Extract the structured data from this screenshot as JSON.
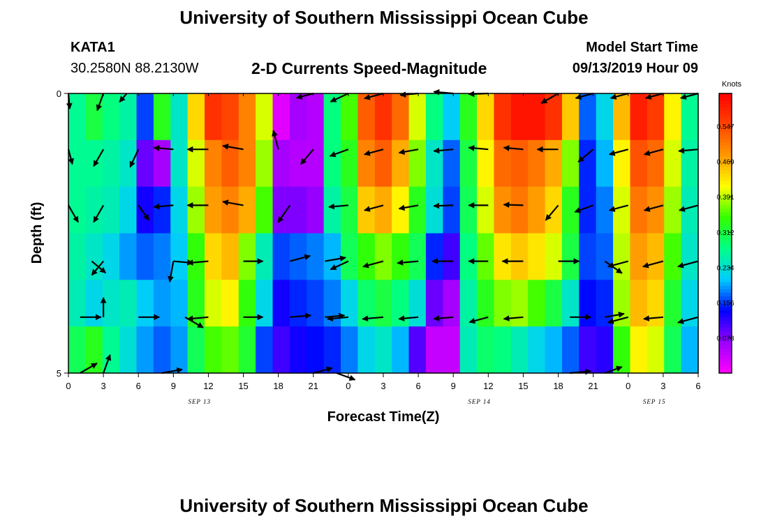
{
  "header": {
    "title": "University of Southern Mississippi Ocean Cube",
    "station": "KATA1",
    "coords": "30.2580N 88.2130W",
    "plot_title": "2-D Currents Speed-Magnitude",
    "model_label": "Model Start Time",
    "model_time": "09/13/2019 Hour 09"
  },
  "footer": {
    "title": "University of Southern Mississippi Ocean Cube"
  },
  "chart_data": {
    "type": "heatmap",
    "xlabel": "Forecast Time(Z)",
    "ylabel": "Depth (ft)",
    "xlim": [
      0,
      54
    ],
    "ylim": [
      0,
      5
    ],
    "x_ticks": [
      "0",
      "3",
      "6",
      "9",
      "12",
      "15",
      "18",
      "21",
      "0",
      "3",
      "6",
      "9",
      "12",
      "15",
      "18",
      "21",
      "0",
      "3",
      "6"
    ],
    "y_ticks": [
      "0",
      "5"
    ],
    "date_labels": [
      {
        "label": "SEP 13",
        "hour": 11
      },
      {
        "label": "SEP 14",
        "hour": 35
      },
      {
        "label": "SEP 15",
        "hour": 50
      }
    ],
    "colorbar": {
      "unit": "Knots",
      "range": [
        0,
        0.62
      ],
      "ticks": [
        "0.078",
        "0.156",
        "0.234",
        "0.312",
        "0.391",
        "0.469",
        "0.547"
      ],
      "colors": [
        "#ff00ff",
        "#9900ff",
        "#0000ff",
        "#00ccff",
        "#00ff88",
        "#33ff00",
        "#ffff00",
        "#ff9900",
        "#ff4400",
        "#ff0000"
      ]
    },
    "depth_layers": [
      0,
      1,
      2,
      3,
      4,
      5
    ],
    "speed": [
      [
        0.27,
        0.31,
        0.28,
        0.26,
        0.16,
        0.33,
        0.24,
        0.44,
        0.57,
        0.55,
        0.5,
        0.4,
        0.02,
        0.06,
        0.05,
        0.28,
        0.35,
        0.53,
        0.57,
        0.52,
        0.4,
        0.28,
        0.21,
        0.33,
        0.44,
        0.57,
        0.6,
        0.6,
        0.57,
        0.45,
        0.17,
        0.22,
        0.46,
        0.59,
        0.56,
        0.42,
        0.27
      ],
      [
        0.27,
        0.27,
        0.26,
        0.24,
        0.09,
        0.06,
        0.24,
        0.4,
        0.5,
        0.53,
        0.5,
        0.38,
        0.06,
        0.05,
        0.05,
        0.28,
        0.33,
        0.5,
        0.53,
        0.47,
        0.37,
        0.24,
        0.17,
        0.31,
        0.42,
        0.52,
        0.53,
        0.51,
        0.47,
        0.37,
        0.15,
        0.2,
        0.42,
        0.54,
        0.52,
        0.4,
        0.26
      ],
      [
        0.27,
        0.26,
        0.25,
        0.22,
        0.13,
        0.15,
        0.22,
        0.38,
        0.48,
        0.5,
        0.47,
        0.35,
        0.08,
        0.08,
        0.07,
        0.26,
        0.31,
        0.45,
        0.47,
        0.42,
        0.33,
        0.23,
        0.16,
        0.3,
        0.4,
        0.49,
        0.51,
        0.48,
        0.44,
        0.33,
        0.15,
        0.18,
        0.4,
        0.51,
        0.49,
        0.38,
        0.25
      ],
      [
        0.26,
        0.24,
        0.22,
        0.19,
        0.17,
        0.18,
        0.21,
        0.34,
        0.44,
        0.46,
        0.37,
        0.25,
        0.16,
        0.17,
        0.18,
        0.2,
        0.3,
        0.34,
        0.37,
        0.34,
        0.3,
        0.15,
        0.11,
        0.28,
        0.36,
        0.43,
        0.45,
        0.43,
        0.4,
        0.31,
        0.16,
        0.17,
        0.39,
        0.48,
        0.46,
        0.35,
        0.24
      ],
      [
        0.25,
        0.22,
        0.24,
        0.25,
        0.21,
        0.19,
        0.2,
        0.33,
        0.4,
        0.42,
        0.34,
        0.22,
        0.13,
        0.15,
        0.16,
        0.18,
        0.22,
        0.29,
        0.31,
        0.28,
        0.23,
        0.09,
        0.06,
        0.26,
        0.33,
        0.37,
        0.38,
        0.35,
        0.31,
        0.24,
        0.14,
        0.15,
        0.38,
        0.46,
        0.44,
        0.32,
        0.22
      ],
      [
        0.3,
        0.33,
        0.27,
        0.23,
        0.19,
        0.17,
        0.19,
        0.3,
        0.35,
        0.36,
        0.32,
        0.16,
        0.11,
        0.13,
        0.14,
        0.15,
        0.18,
        0.22,
        0.24,
        0.2,
        0.1,
        0.04,
        0.04,
        0.25,
        0.29,
        0.28,
        0.25,
        0.22,
        0.2,
        0.17,
        0.11,
        0.12,
        0.34,
        0.42,
        0.4,
        0.3,
        0.2
      ]
    ],
    "vectors": [
      {
        "t": 0,
        "d": 0,
        "dir": 175,
        "len": 22
      },
      {
        "t": 3,
        "d": 0,
        "dir": 200,
        "len": 26
      },
      {
        "t": 5,
        "d": 0,
        "dir": 220,
        "len": 16
      },
      {
        "t": 21,
        "d": 0,
        "dir": 255,
        "len": 25
      },
      {
        "t": 24,
        "d": 0,
        "dir": 245,
        "len": 28
      },
      {
        "t": 27,
        "d": 0,
        "dir": 255,
        "len": 28
      },
      {
        "t": 30,
        "d": 0,
        "dir": 265,
        "len": 26
      },
      {
        "t": 33,
        "d": 0,
        "dir": 275,
        "len": 28
      },
      {
        "t": 36,
        "d": 0,
        "dir": 268,
        "len": 28
      },
      {
        "t": 42,
        "d": 0,
        "dir": 240,
        "len": 28
      },
      {
        "t": 45,
        "d": 0,
        "dir": 255,
        "len": 26
      },
      {
        "t": 48,
        "d": 0,
        "dir": 255,
        "len": 26
      },
      {
        "t": 51,
        "d": 0,
        "dir": 255,
        "len": 26
      },
      {
        "t": 54,
        "d": 0,
        "dir": 255,
        "len": 26
      },
      {
        "t": 0,
        "d": 1,
        "dir": 165,
        "len": 22
      },
      {
        "t": 3,
        "d": 1,
        "dir": 210,
        "len": 28
      },
      {
        "t": 6,
        "d": 1,
        "dir": 205,
        "len": 28
      },
      {
        "t": 9,
        "d": 1,
        "dir": 275,
        "len": 28
      },
      {
        "t": 12,
        "d": 1,
        "dir": 270,
        "len": 30
      },
      {
        "t": 15,
        "d": 1,
        "dir": 280,
        "len": 30
      },
      {
        "t": 18,
        "d": 1,
        "dir": 345,
        "len": 28
      },
      {
        "t": 21,
        "d": 1,
        "dir": 220,
        "len": 28
      },
      {
        "t": 24,
        "d": 1,
        "dir": 250,
        "len": 28
      },
      {
        "t": 27,
        "d": 1,
        "dir": 255,
        "len": 28
      },
      {
        "t": 30,
        "d": 1,
        "dir": 260,
        "len": 28
      },
      {
        "t": 33,
        "d": 1,
        "dir": 265,
        "len": 28
      },
      {
        "t": 36,
        "d": 1,
        "dir": 275,
        "len": 28
      },
      {
        "t": 39,
        "d": 1,
        "dir": 275,
        "len": 28
      },
      {
        "t": 42,
        "d": 1,
        "dir": 270,
        "len": 30
      },
      {
        "t": 45,
        "d": 1,
        "dir": 230,
        "len": 28
      },
      {
        "t": 48,
        "d": 1,
        "dir": 255,
        "len": 28
      },
      {
        "t": 51,
        "d": 1,
        "dir": 255,
        "len": 28
      },
      {
        "t": 54,
        "d": 1,
        "dir": 265,
        "len": 28
      },
      {
        "t": 0,
        "d": 2,
        "dir": 150,
        "len": 28
      },
      {
        "t": 3,
        "d": 2,
        "dir": 210,
        "len": 28
      },
      {
        "t": 6,
        "d": 2,
        "dir": 145,
        "len": 26
      },
      {
        "t": 9,
        "d": 2,
        "dir": 265,
        "len": 28
      },
      {
        "t": 12,
        "d": 2,
        "dir": 270,
        "len": 30
      },
      {
        "t": 15,
        "d": 2,
        "dir": 280,
        "len": 30
      },
      {
        "t": 19,
        "d": 2,
        "dir": 215,
        "len": 30
      },
      {
        "t": 24,
        "d": 2,
        "dir": 265,
        "len": 28
      },
      {
        "t": 27,
        "d": 2,
        "dir": 255,
        "len": 28
      },
      {
        "t": 30,
        "d": 2,
        "dir": 260,
        "len": 28
      },
      {
        "t": 33,
        "d": 2,
        "dir": 268,
        "len": 28
      },
      {
        "t": 36,
        "d": 2,
        "dir": 270,
        "len": 28
      },
      {
        "t": 39,
        "d": 2,
        "dir": 272,
        "len": 28
      },
      {
        "t": 42,
        "d": 2,
        "dir": 220,
        "len": 28
      },
      {
        "t": 45,
        "d": 2,
        "dir": 250,
        "len": 28
      },
      {
        "t": 48,
        "d": 2,
        "dir": 255,
        "len": 28
      },
      {
        "t": 51,
        "d": 2,
        "dir": 255,
        "len": 28
      },
      {
        "t": 54,
        "d": 2,
        "dir": 255,
        "len": 28
      },
      {
        "t": 2,
        "d": 3,
        "dir": 130,
        "len": 26
      },
      {
        "t": 3,
        "d": 3,
        "dir": 220,
        "len": 26
      },
      {
        "t": 9,
        "d": 3,
        "dir": 95,
        "len": 28
      },
      {
        "t": 9,
        "d": 3,
        "dir": 190,
        "len": 30
      },
      {
        "t": 12,
        "d": 3,
        "dir": 265,
        "len": 30
      },
      {
        "t": 15,
        "d": 3,
        "dir": 90,
        "len": 28
      },
      {
        "t": 19,
        "d": 3,
        "dir": 75,
        "len": 30
      },
      {
        "t": 22,
        "d": 3,
        "dir": 80,
        "len": 30
      },
      {
        "t": 24,
        "d": 3,
        "dir": 245,
        "len": 28
      },
      {
        "t": 27,
        "d": 3,
        "dir": 255,
        "len": 30
      },
      {
        "t": 30,
        "d": 3,
        "dir": 265,
        "len": 30
      },
      {
        "t": 33,
        "d": 3,
        "dir": 270,
        "len": 30
      },
      {
        "t": 36,
        "d": 3,
        "dir": 270,
        "len": 28
      },
      {
        "t": 39,
        "d": 3,
        "dir": 270,
        "len": 30
      },
      {
        "t": 42,
        "d": 3,
        "dir": 90,
        "len": 30
      },
      {
        "t": 46,
        "d": 3,
        "dir": 125,
        "len": 30
      },
      {
        "t": 48,
        "d": 3,
        "dir": 255,
        "len": 30
      },
      {
        "t": 51,
        "d": 3,
        "dir": 255,
        "len": 30
      },
      {
        "t": 54,
        "d": 3,
        "dir": 255,
        "len": 30
      },
      {
        "t": 1,
        "d": 4,
        "dir": 90,
        "len": 30
      },
      {
        "t": 3,
        "d": 4,
        "dir": 0,
        "len": 28
      },
      {
        "t": 6,
        "d": 4,
        "dir": 90,
        "len": 30
      },
      {
        "t": 10,
        "d": 4,
        "dir": 120,
        "len": 30
      },
      {
        "t": 12,
        "d": 4,
        "dir": 265,
        "len": 30
      },
      {
        "t": 15,
        "d": 4,
        "dir": 90,
        "len": 28
      },
      {
        "t": 19,
        "d": 4,
        "dir": 85,
        "len": 30
      },
      {
        "t": 22,
        "d": 4,
        "dir": 85,
        "len": 28
      },
      {
        "t": 24,
        "d": 4,
        "dir": 265,
        "len": 30
      },
      {
        "t": 27,
        "d": 4,
        "dir": 265,
        "len": 30
      },
      {
        "t": 30,
        "d": 4,
        "dir": 265,
        "len": 28
      },
      {
        "t": 33,
        "d": 4,
        "dir": 265,
        "len": 28
      },
      {
        "t": 36,
        "d": 4,
        "dir": 255,
        "len": 28
      },
      {
        "t": 39,
        "d": 4,
        "dir": 265,
        "len": 28
      },
      {
        "t": 43,
        "d": 4,
        "dir": 90,
        "len": 30
      },
      {
        "t": 46,
        "d": 4,
        "dir": 80,
        "len": 28
      },
      {
        "t": 48,
        "d": 4,
        "dir": 255,
        "len": 30
      },
      {
        "t": 51,
        "d": 4,
        "dir": 265,
        "len": 28
      },
      {
        "t": 54,
        "d": 4,
        "dir": 255,
        "len": 30
      },
      {
        "t": 1,
        "d": 5,
        "dir": 60,
        "len": 28
      },
      {
        "t": 3,
        "d": 5,
        "dir": 20,
        "len": 28
      },
      {
        "t": 8,
        "d": 5,
        "dir": 80,
        "len": 30
      },
      {
        "t": 21,
        "d": 5,
        "dir": 75,
        "len": 28
      },
      {
        "t": 23,
        "d": 5,
        "dir": 110,
        "len": 28
      },
      {
        "t": 43,
        "d": 5,
        "dir": 85,
        "len": 30
      },
      {
        "t": 46,
        "d": 5,
        "dir": 70,
        "len": 26
      }
    ]
  }
}
